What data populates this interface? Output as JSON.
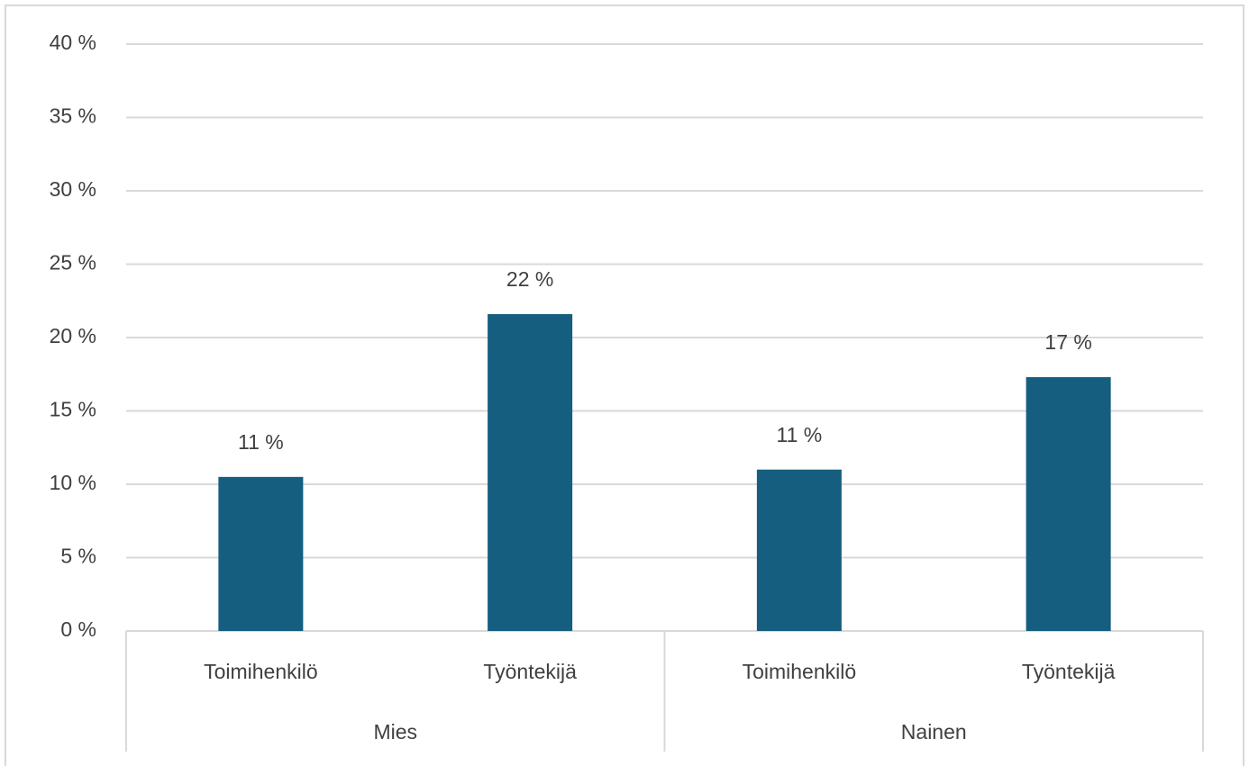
{
  "chart_data": {
    "type": "bar",
    "categories": [
      "Toimihenkilö",
      "Työntekijä",
      "Toimihenkilö",
      "Työntekijä"
    ],
    "groups": [
      "Mies",
      "Nainen"
    ],
    "values": [
      10.5,
      21.6,
      11.0,
      17.3
    ],
    "value_labels": [
      "11 %",
      "22 %",
      "11 %",
      "17 %"
    ],
    "color": "#165e80",
    "ylim": [
      0,
      40
    ],
    "yticks": [
      {
        "value": 0,
        "label": "0 %"
      },
      {
        "value": 5,
        "label": "5 %"
      },
      {
        "value": 10,
        "label": "10 %"
      },
      {
        "value": 15,
        "label": "15 %"
      },
      {
        "value": 20,
        "label": "20 %"
      },
      {
        "value": 25,
        "label": "25 %"
      },
      {
        "value": 30,
        "label": "30 %"
      },
      {
        "value": 35,
        "label": "35 %"
      },
      {
        "value": 40,
        "label": "40 %"
      }
    ],
    "grid": true
  }
}
